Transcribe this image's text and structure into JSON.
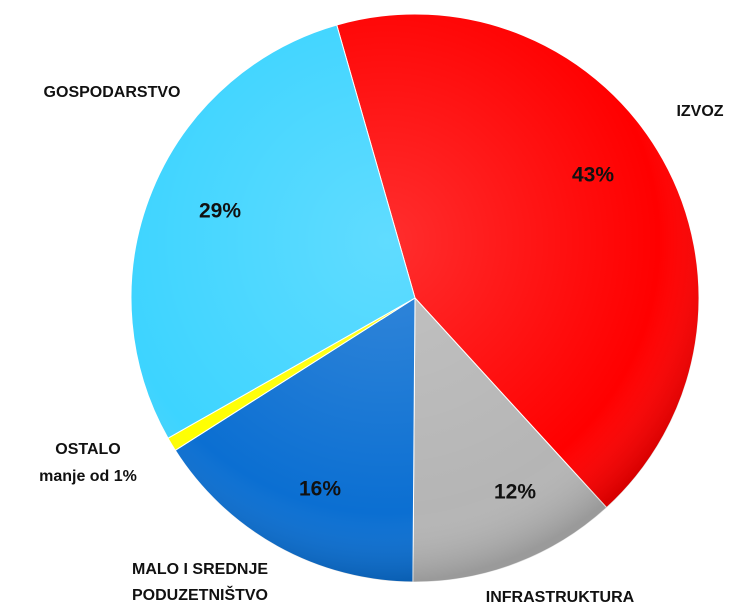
{
  "chart_data": {
    "type": "pie",
    "categories": [
      "IZVOZ",
      "INFRASTRUKTURA",
      "MALO I SREDNJE\nPODUZETNIŠTVO",
      "OSTALO",
      "GOSPODARSTVO"
    ],
    "values": [
      43,
      12,
      16,
      0.8,
      29
    ],
    "value_labels": [
      "43%",
      "12%",
      "16%",
      "manje od 1%",
      "29%"
    ],
    "colors": [
      "#ff0000",
      "#b5b5b5",
      "#0b6fd2",
      "#ffff00",
      "#3dd4ff"
    ]
  }
}
